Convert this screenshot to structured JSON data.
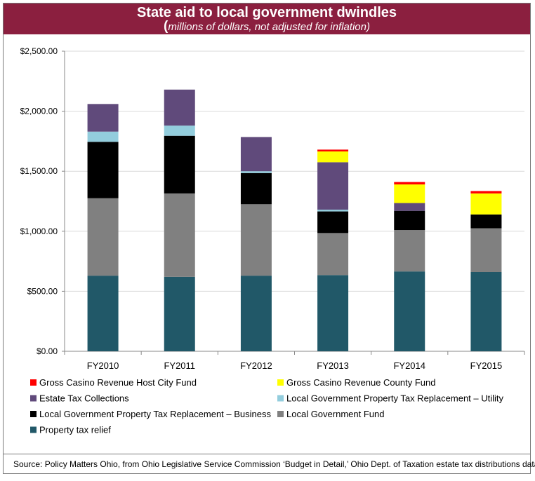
{
  "header": {
    "title": "State aid to local government dwindles",
    "subtitle_paren": "(",
    "subtitle": "millions of dollars, not adjusted for inflation)"
  },
  "source": "Source:  Policy Matters Ohio, from Ohio Legislative Service Commission ‘Budget in Detail,’ Ohio Dept. of Taxation estate tax distributions data.",
  "chart_data": {
    "type": "bar",
    "stacked": true,
    "categories": [
      "FY2010",
      "FY2011",
      "FY2012",
      "FY2013",
      "FY2014",
      "FY2015"
    ],
    "ylim": [
      0,
      2500
    ],
    "yticks": [
      0,
      500,
      1000,
      1500,
      2000,
      2500
    ],
    "ytick_labels": [
      "$0.00",
      "$500.00",
      "$1,000.00",
      "$1,500.00",
      "$2,000.00",
      "$2,500.00"
    ],
    "grid": true,
    "legend_position": "bottom",
    "series": [
      {
        "name": "Property tax relief",
        "color": "#215868",
        "values": [
          630,
          620,
          630,
          635,
          665,
          660
        ]
      },
      {
        "name": "Local Government Fund",
        "color": "#808080",
        "values": [
          645,
          695,
          595,
          350,
          345,
          365
        ]
      },
      {
        "name": "Local Government Property Tax Replacement – Business",
        "color": "#000000",
        "values": [
          470,
          480,
          260,
          180,
          160,
          115
        ]
      },
      {
        "name": "Local Government Property Tax Replacement – Utility",
        "color": "#93cddd",
        "values": [
          85,
          85,
          15,
          15,
          0,
          0
        ]
      },
      {
        "name": "Estate Tax Collections",
        "color": "#604a7b",
        "values": [
          230,
          300,
          285,
          395,
          65,
          0
        ]
      },
      {
        "name": "Gross Casino Revenue County Fund",
        "color": "#ffff00",
        "values": [
          0,
          0,
          0,
          90,
          155,
          175
        ]
      },
      {
        "name": "Gross Casino Revenue Host City Fund",
        "color": "#ff0000",
        "values": [
          0,
          0,
          0,
          15,
          20,
          20
        ]
      }
    ],
    "legend_order": [
      "Gross Casino Revenue Host City Fund",
      "Gross Casino Revenue County Fund",
      "Estate Tax Collections",
      "Local Government Property Tax Replacement – Utility",
      "Local Government Property Tax Replacement – Business",
      "Local Government Fund",
      "Property tax relief"
    ]
  }
}
